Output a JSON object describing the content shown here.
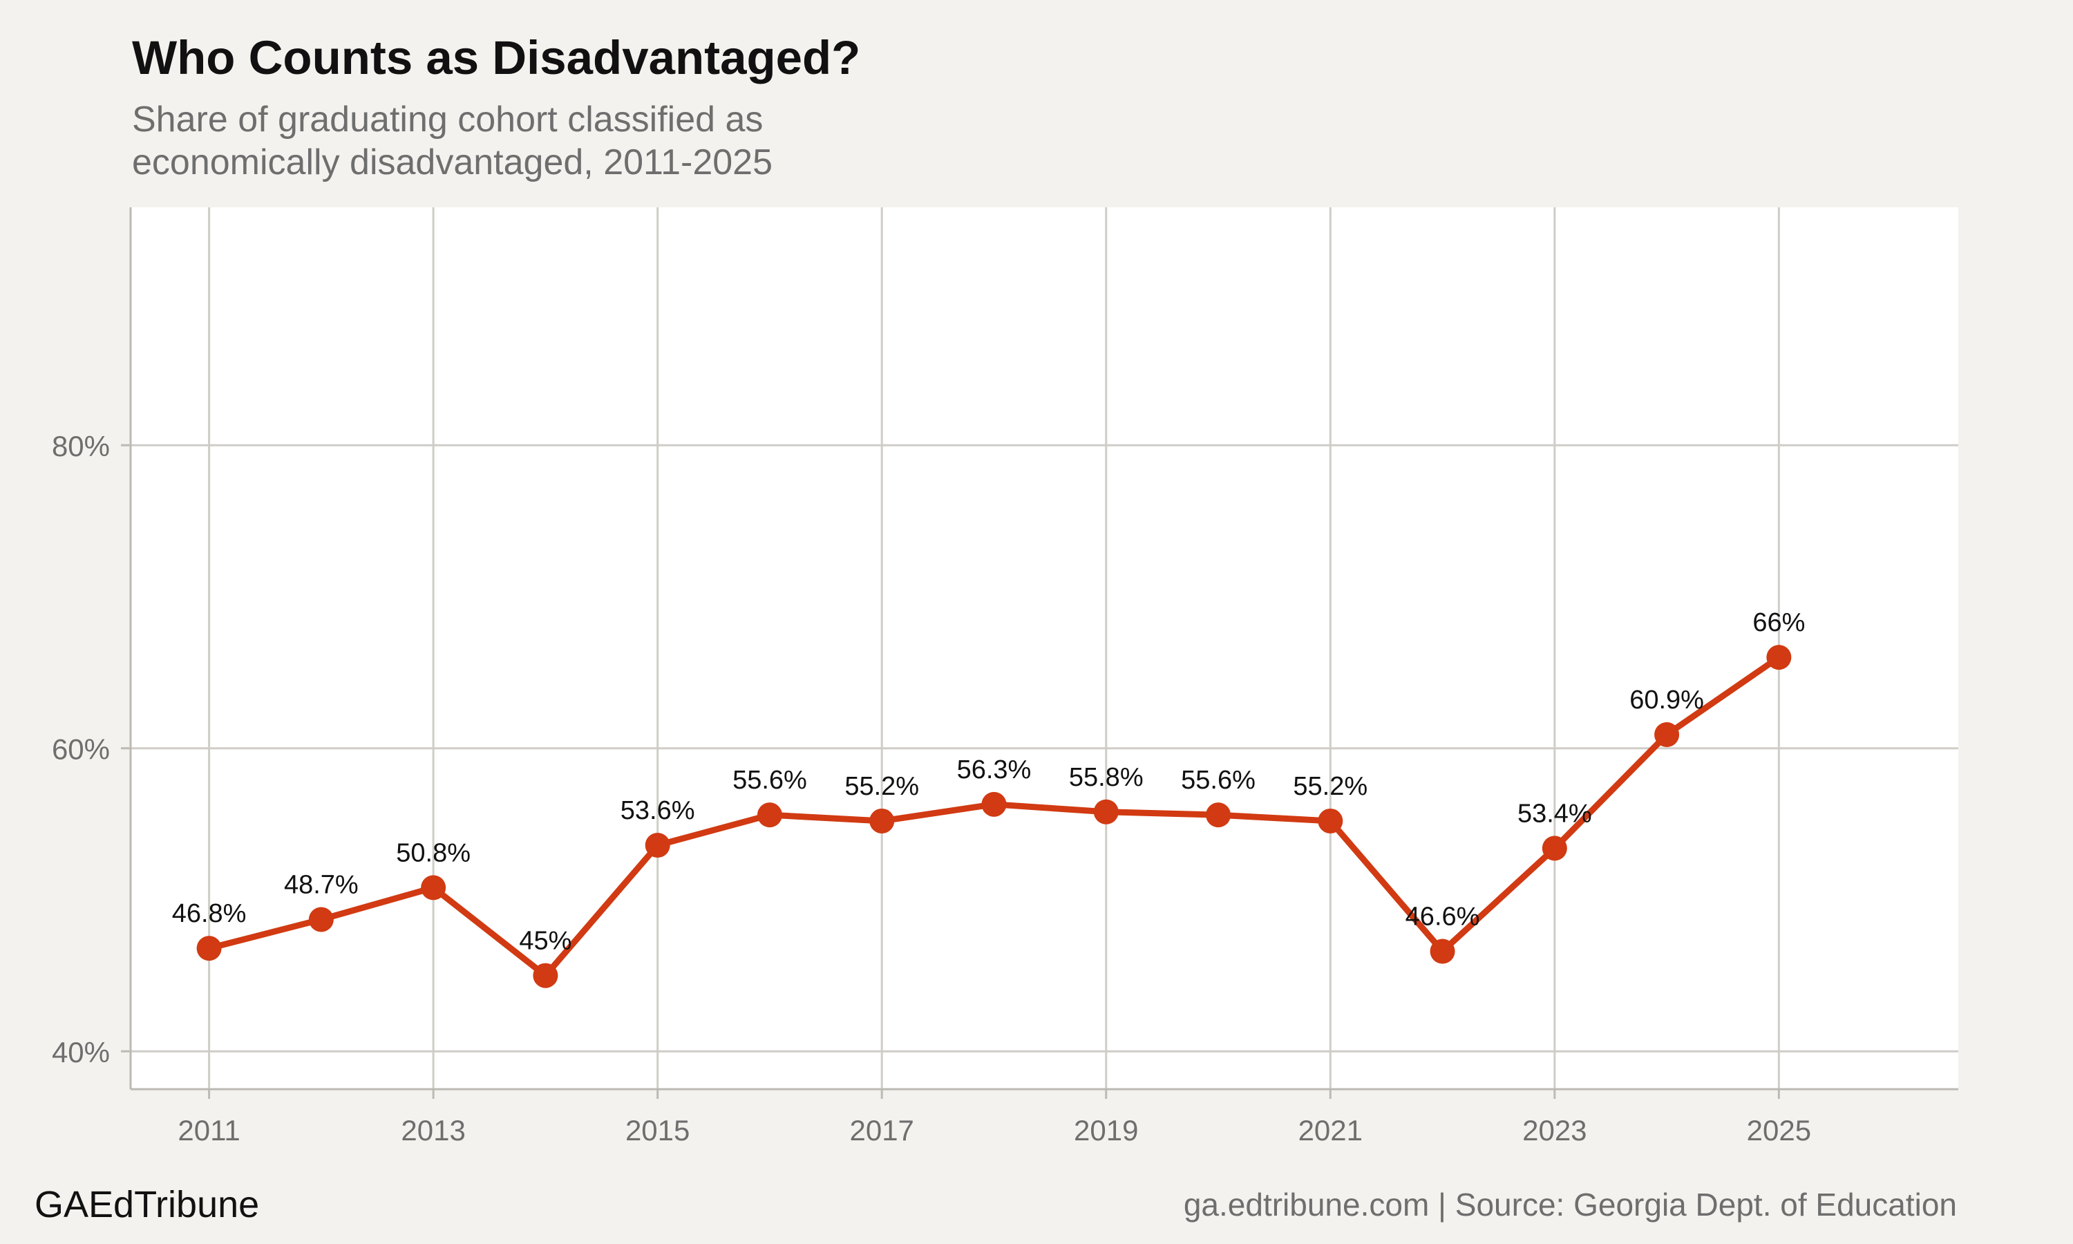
{
  "chart_data": {
    "type": "line",
    "title": "Who Counts as Disadvantaged?",
    "subtitle": [
      "Share of graduating cohort classified as",
      "economically disadvantaged, 2011-2025"
    ],
    "x": [
      2011,
      2012,
      2013,
      2014,
      2015,
      2016,
      2017,
      2018,
      2019,
      2020,
      2021,
      2022,
      2023,
      2024,
      2025
    ],
    "series": [
      {
        "values": [
          46.8,
          48.7,
          50.8,
          45.0,
          53.6,
          55.6,
          55.2,
          56.3,
          55.8,
          55.6,
          55.2,
          46.6,
          53.4,
          60.9,
          66.0
        ],
        "labels": [
          "46.8%",
          "48.7%",
          "50.8%",
          "45%",
          "53.6%",
          "55.6%",
          "55.2%",
          "56.3%",
          "55.8%",
          "55.6%",
          "55.2%",
          "46.6%",
          "53.4%",
          "60.9%",
          "66%"
        ],
        "color": "#d13a12"
      }
    ],
    "xticks": [
      2011,
      2013,
      2015,
      2017,
      2019,
      2021,
      2023,
      2025
    ],
    "xtick_labels": [
      "2011",
      "2013",
      "2015",
      "2017",
      "2019",
      "2021",
      "2023",
      "2025"
    ],
    "yticks": [
      40,
      60,
      80
    ],
    "ytick_labels": [
      "40%",
      "60%",
      "80%"
    ],
    "xlim": [
      2010.3,
      2026.6
    ],
    "ylim": [
      37.5,
      95.7
    ],
    "xlabel": "",
    "ylabel": "",
    "grid": true,
    "legend": "none",
    "colors": {
      "background": "#f4f2ee",
      "panel": "#ffffff",
      "grid": "#cfcdc7",
      "line": "#d13a12"
    }
  },
  "footer": {
    "brand": "GAEdTribune",
    "source": "ga.edtribune.com | Source: Georgia Dept. of Education"
  }
}
